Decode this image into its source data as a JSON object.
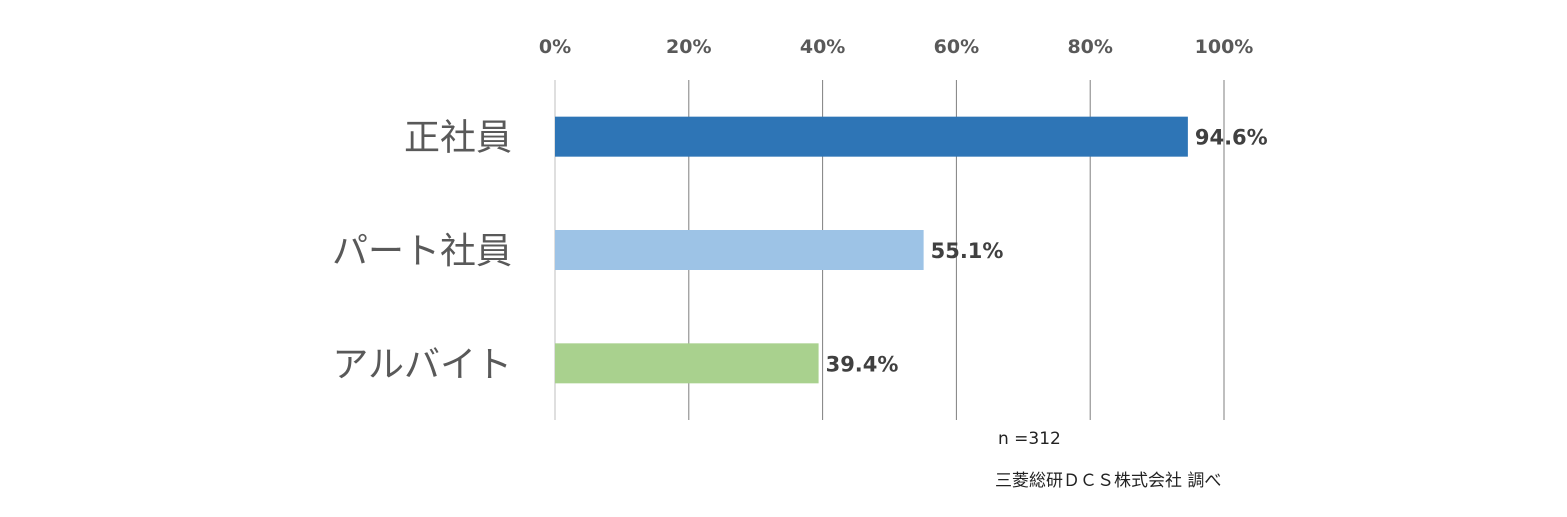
{
  "chart_data": {
    "type": "bar",
    "orientation": "horizontal",
    "categories": [
      "正社員",
      "パート社員",
      "アルバイト"
    ],
    "values": [
      94.6,
      55.1,
      39.4
    ],
    "data_labels": [
      "94.6%",
      "55.1%",
      "39.4%"
    ],
    "colors": [
      "#2E75B6",
      "#9DC3E6",
      "#A9D18E"
    ],
    "xlim": [
      0,
      100
    ],
    "x_ticks": [
      0,
      20,
      40,
      60,
      80,
      100
    ],
    "x_tick_labels": [
      "0%",
      "20%",
      "40%",
      "60%",
      "80%",
      "100%"
    ],
    "x_axis_position": "top",
    "grid": true,
    "legend": "none",
    "title": "",
    "xlabel": "",
    "ylabel": ""
  },
  "notes": {
    "sample_size": "n =312",
    "source": "三菱総研ＤＣＳ株式会社 調べ"
  }
}
